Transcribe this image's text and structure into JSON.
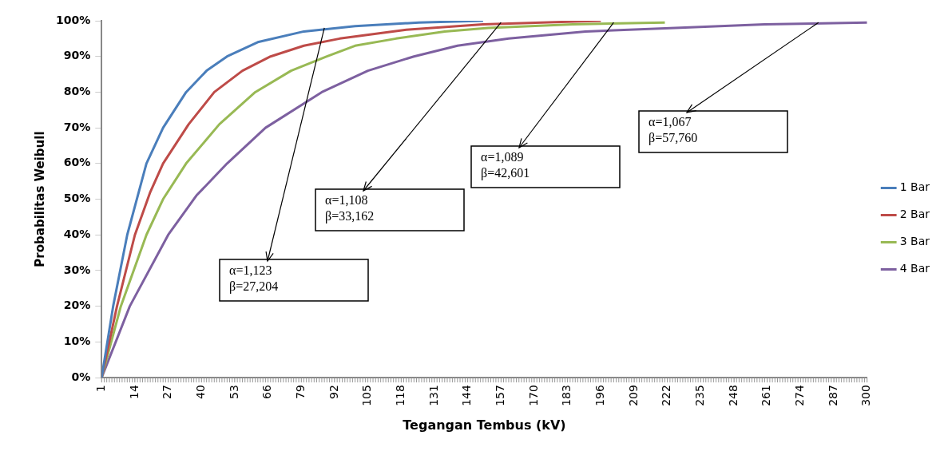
{
  "chart_data": {
    "type": "line",
    "xlabel": "Tegangan Tembus (kV)",
    "ylabel": "Probabilitas Weibull",
    "xlim": [
      1,
      300
    ],
    "xticks": [
      1,
      14,
      27,
      40,
      53,
      66,
      79,
      92,
      105,
      118,
      131,
      144,
      157,
      170,
      183,
      196,
      209,
      222,
      235,
      248,
      261,
      274,
      287,
      300
    ],
    "ylim": [
      0,
      100
    ],
    "yticks": [
      {
        "value": 0,
        "label": "0%"
      },
      {
        "value": 10,
        "label": "10%"
      },
      {
        "value": 20,
        "label": "20%"
      },
      {
        "value": 30,
        "label": "30%"
      },
      {
        "value": 40,
        "label": "40%"
      },
      {
        "value": 50,
        "label": "50%"
      },
      {
        "value": 60,
        "label": "60%"
      },
      {
        "value": 70,
        "label": "70%"
      },
      {
        "value": 80,
        "label": "80%"
      },
      {
        "value": 90,
        "label": "90%"
      },
      {
        "value": 100,
        "label": "100%"
      }
    ],
    "grid": false,
    "legend": "right",
    "marker": "none",
    "line_style": "solid",
    "series": [
      {
        "name": "1 Bar",
        "color": "#4a7ebb",
        "x": [
          1,
          5.5,
          11,
          18.5,
          25,
          34,
          42,
          50,
          62,
          80,
          100,
          125,
          150
        ],
        "values": [
          0,
          20,
          40,
          60,
          70,
          80,
          86,
          90,
          94,
          97,
          98.5,
          99.5,
          100
        ]
      },
      {
        "name": "2 Bar",
        "color": "#be4b48",
        "x": [
          1,
          7,
          14,
          20,
          25,
          35,
          45,
          56,
          67,
          80,
          94,
          120,
          150,
          196
        ],
        "values": [
          0,
          20,
          40,
          52,
          60,
          71,
          80,
          86,
          90,
          93,
          95,
          97.5,
          99,
          100
        ]
      },
      {
        "name": "3 Bar",
        "color": "#98b954",
        "x": [
          1,
          8.5,
          18.5,
          25,
          34,
          47,
          61,
          75,
          89,
          100,
          116,
          135,
          152,
          185,
          221
        ],
        "values": [
          0,
          20,
          40,
          50,
          60,
          71,
          80,
          86,
          90,
          93,
          95,
          97,
          98,
          99,
          99.5
        ]
      },
      {
        "name": "4 Bar",
        "color": "#7d60a0",
        "x": [
          1,
          12,
          27,
          38,
          50,
          65,
          87,
          105,
          123,
          140,
          160,
          190,
          225,
          260,
          300
        ],
        "values": [
          0,
          20,
          40,
          51,
          60,
          70,
          80,
          86,
          90,
          93,
          95,
          97,
          98,
          99,
          99.5
        ]
      }
    ],
    "annotations": [
      {
        "text": "α=1,123\nβ=27,204",
        "x": 88,
        "y": 98
      },
      {
        "text": "α=1,108\nβ=33,162",
        "x": 157,
        "y": 99.5
      },
      {
        "text": "α=1,089\nβ=42,601",
        "x": 201,
        "y": 99.5
      },
      {
        "text": "α=1,067\nβ=57,760",
        "x": 281,
        "y": 99.5
      }
    ]
  }
}
